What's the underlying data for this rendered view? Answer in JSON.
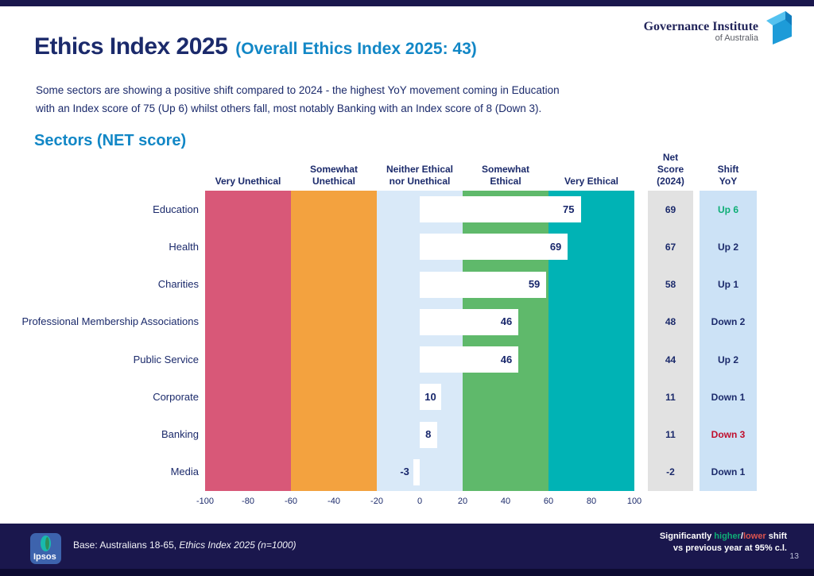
{
  "header": {
    "title": "Ethics Index 2025",
    "title_suffix": "(Overall Ethics Index 2025: 43)",
    "logo_line1": "Governance Institute",
    "logo_line2": "of Australia"
  },
  "subtitle": {
    "line1": "Some sectors are showing a positive shift compared to 2024 - the highest YoY movement coming in Education",
    "line2": "with an Index score of 75 (Up 6) whilst others fall, most notably Banking with an Index score of 8 (Down 3)."
  },
  "section_title": "Sectors (NET score)",
  "chart_data": {
    "type": "bar",
    "orientation": "horizontal",
    "title": "Sectors (NET score)",
    "xlim": [
      -100,
      100
    ],
    "x_ticks": [
      -100,
      -80,
      -60,
      -40,
      -20,
      0,
      20,
      40,
      60,
      80,
      100
    ],
    "categories": [
      "Education",
      "Health",
      "Charities",
      "Professional Membership Associations",
      "Public Service",
      "Corporate",
      "Banking",
      "Media"
    ],
    "values": [
      75,
      69,
      59,
      46,
      46,
      10,
      8,
      -3
    ],
    "net_score_2024": [
      69,
      67,
      58,
      48,
      44,
      11,
      11,
      -2
    ],
    "shift_yoy": [
      "Up 6",
      "Up 2",
      "Up 1",
      "Down 2",
      "Up 2",
      "Down 1",
      "Down 3",
      "Down 1"
    ],
    "shift_emphasis": [
      "up",
      "none",
      "none",
      "none",
      "none",
      "none",
      "down",
      "none"
    ],
    "bands": [
      {
        "label": "Very Unethical",
        "range": [
          -100,
          -60
        ],
        "color": "#D85878"
      },
      {
        "label": "Somewhat\nUnethical",
        "range": [
          -60,
          -20
        ],
        "color": "#F3A23F"
      },
      {
        "label": "Neither Ethical\nnor Unethical",
        "range": [
          -20,
          20
        ],
        "color": "#D9E9F8"
      },
      {
        "label": "Somewhat\nEthical",
        "range": [
          20,
          60
        ],
        "color": "#5FB96B"
      },
      {
        "label": "Very Ethical",
        "range": [
          60,
          100
        ],
        "color": "#00B3B5"
      }
    ],
    "extra_columns": [
      {
        "label": "Net\nScore\n(2024)",
        "bg": "#E2E2E2"
      },
      {
        "label": "Shift\nYoY",
        "bg": "#CCE2F6"
      }
    ]
  },
  "colors": {
    "navy": "#1B2A6B",
    "accent_blue": "#1287C6",
    "up_green": "#0EAE76",
    "down_red": "#C00F2D",
    "footer_bg": "#1A174D"
  },
  "footer": {
    "ipsos": "Ipsos",
    "base_label": "Base: Australians 18-65, ",
    "base_italic": "Ethics Index 2025 (n=1000)",
    "sig_prefix": "Significantly ",
    "sig_higher": "higher",
    "sig_slash": "/",
    "sig_lower": "lower",
    "sig_suffix": " shift",
    "sig_line2": "vs previous year at 95% c.l.",
    "page_number": "13"
  }
}
